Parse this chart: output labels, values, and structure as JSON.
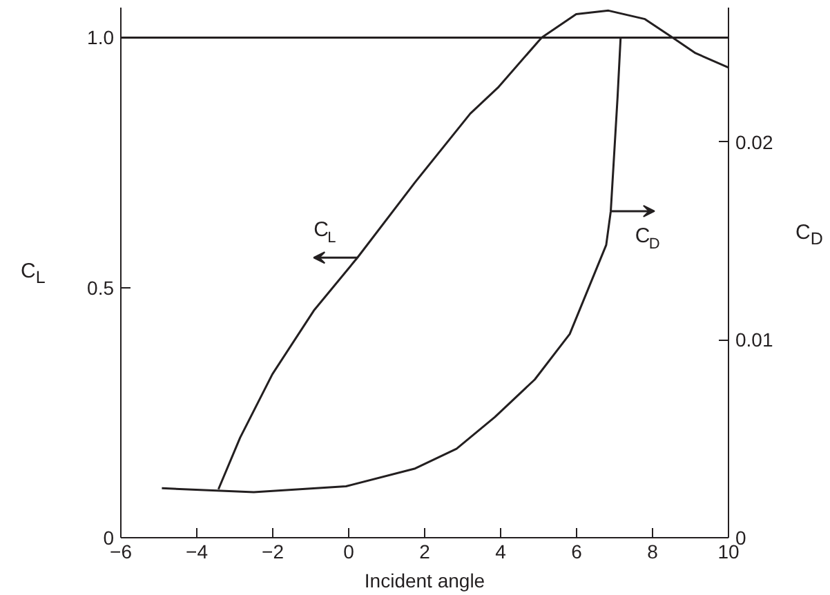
{
  "chart_data": {
    "type": "line",
    "xlabel": "Incident angle",
    "ylabel": "C$_{L}$",
    "y2label": "C$_{D}$",
    "xlim": [
      -6,
      10
    ],
    "ylim": [
      0,
      1.06
    ],
    "y2lim": [
      0,
      0.0268
    ],
    "xticks": [
      {
        "value": -6,
        "label": "−6"
      },
      {
        "value": -4,
        "label": "−4"
      },
      {
        "value": -2,
        "label": "−2"
      },
      0,
      2,
      4,
      6,
      8,
      10
    ],
    "yticks": [
      0,
      0.5,
      {
        "value": 1.0,
        "label": "1.0"
      }
    ],
    "y2ticks": [
      0,
      0.01,
      0.02
    ],
    "grid": false,
    "marker": "none",
    "line_style": "solid",
    "ref_lines": [
      {
        "axis": "y",
        "value": 1.0,
        "color": "#231f20"
      }
    ],
    "annotations": [
      {
        "text": "C$_{L}$",
        "x": 0.23,
        "y": 0.56
      },
      {
        "text": "C$_{D}$",
        "x": 6.9,
        "y": 0.653
      }
    ],
    "series": [
      {
        "color": "#231f20",
        "x": [
          -3.43,
          -2.86,
          -2.01,
          -0.92,
          0.23,
          1.75,
          3.2,
          3.93,
          5.08,
          5.99,
          6.84,
          7.8,
          8.53,
          9.13,
          10.0
        ],
        "values": [
          0.097,
          0.2,
          0.327,
          0.454,
          0.56,
          0.711,
          0.848,
          0.9,
          1.0,
          1.047,
          1.054,
          1.037,
          1.0,
          0.969,
          0.94
        ]
      },
      {
        "color": "#231f20",
        "axis": "y2",
        "x": [
          -4.92,
          -2.5,
          -0.07,
          1.75,
          2.84,
          3.85,
          4.9,
          5.82,
          6.78,
          6.9,
          7.08,
          7.16
        ],
        "values": [
          0.0025,
          0.0023,
          0.0026,
          0.0035,
          0.0045,
          0.0061,
          0.008,
          0.0103,
          0.0148,
          0.0165,
          0.0223,
          0.0253
        ]
      }
    ]
  }
}
